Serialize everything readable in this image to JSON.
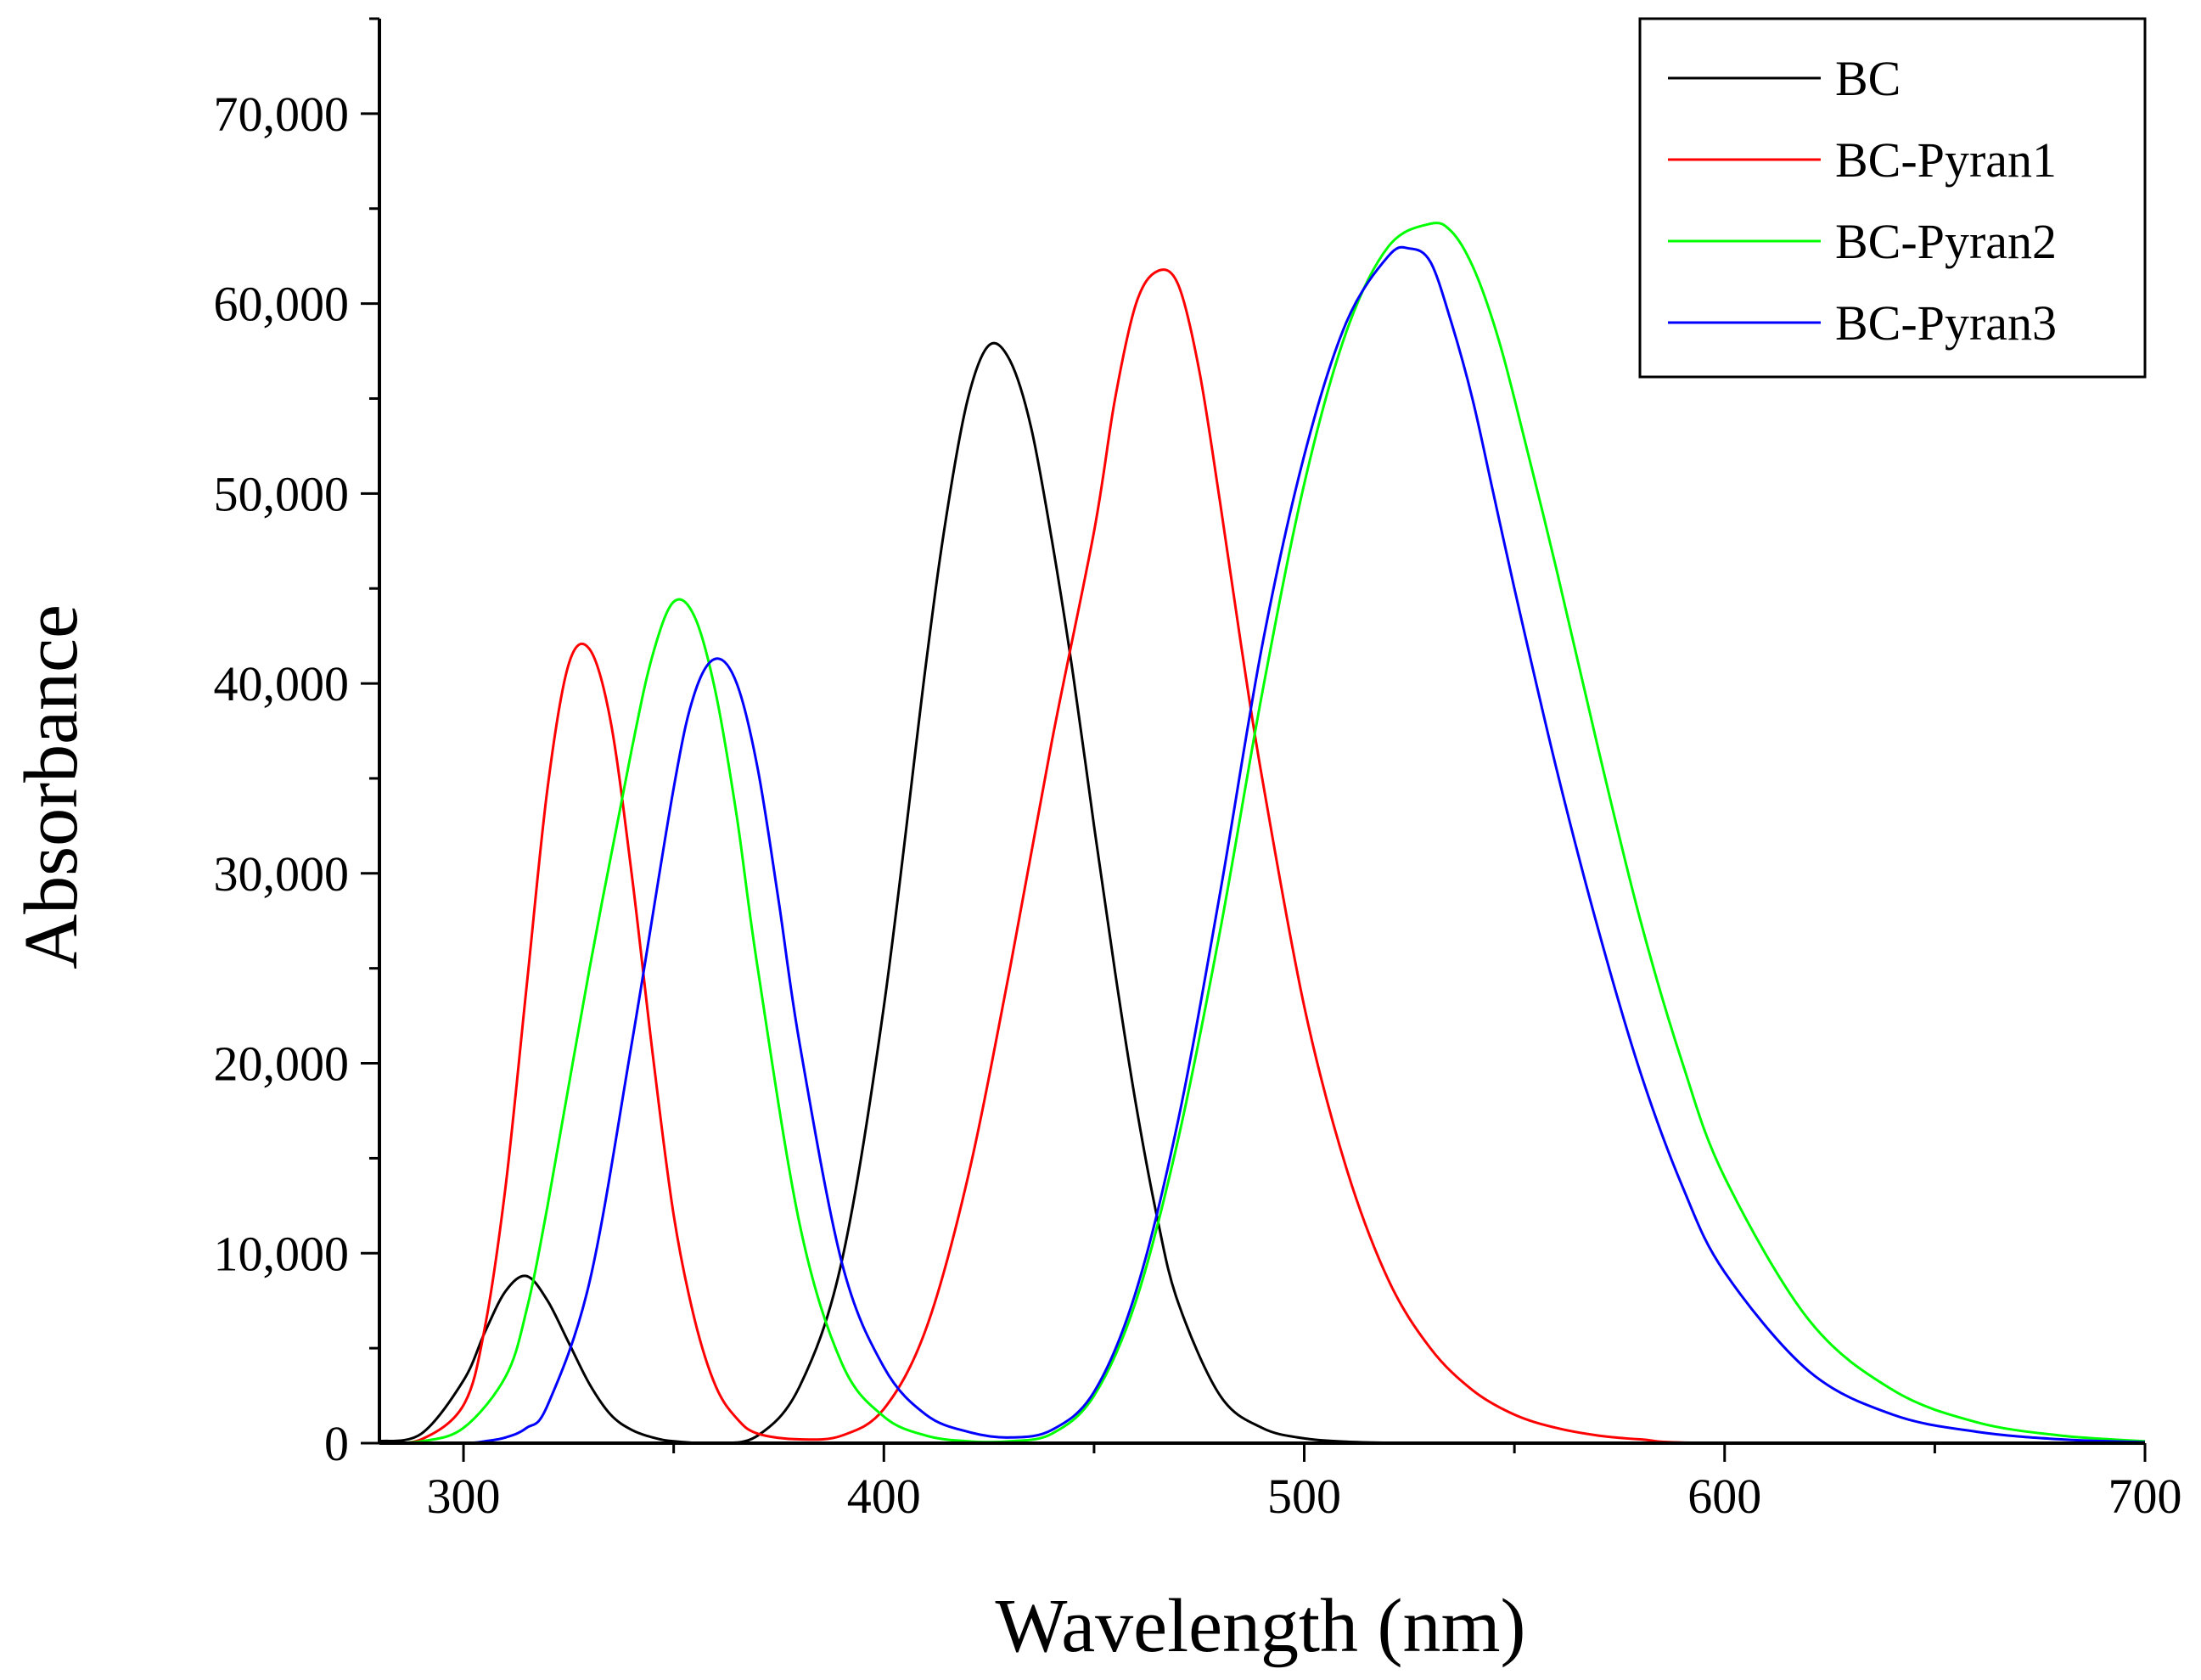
{
  "chart_data": {
    "type": "line",
    "title": "",
    "xlabel": "Wavelength (nm)",
    "ylabel": "Absorbance",
    "xlim": [
      280,
      700
    ],
    "ylim": [
      0,
      75000
    ],
    "xticks": [
      300,
      400,
      500,
      600,
      700
    ],
    "xtick_labels": [
      "300",
      "400",
      "500",
      "600",
      "700"
    ],
    "yticks": [
      0,
      10000,
      20000,
      30000,
      40000,
      50000,
      60000,
      70000
    ],
    "ytick_labels": [
      "0",
      "10,000",
      "20,000",
      "30,000",
      "40,000",
      "50,000",
      "60,000",
      "70,000"
    ],
    "grid": false,
    "legend_position": "top-right",
    "series": [
      {
        "name": "BC",
        "color": "#000000",
        "x": [
          280,
          290,
          300,
          305,
          310,
          315,
          320,
          325,
          330,
          335,
          340,
          345,
          350,
          360,
          370,
          380,
          390,
          400,
          410,
          415,
          420,
          425,
          430,
          435,
          440,
          445,
          450,
          455,
          460,
          465,
          470,
          480,
          490,
          500,
          510,
          520,
          530,
          540,
          560,
          600,
          700
        ],
        "y": [
          100,
          500,
          3300,
          5800,
          8000,
          8800,
          7500,
          5300,
          3100,
          1500,
          700,
          300,
          100,
          0,
          400,
          3000,
          9600,
          23000,
          41000,
          49000,
          55000,
          57800,
          57000,
          53500,
          47500,
          40500,
          32500,
          24800,
          17800,
          11900,
          7400,
          2500,
          800,
          250,
          80,
          20,
          0,
          0,
          0,
          0,
          0
        ]
      },
      {
        "name": "BC-Pyran1",
        "color": "#ff0000",
        "x": [
          280,
          290,
          300,
          305,
          310,
          315,
          320,
          325,
          330,
          335,
          340,
          345,
          350,
          355,
          360,
          365,
          370,
          380,
          390,
          400,
          410,
          420,
          430,
          440,
          450,
          455,
          460,
          465,
          470,
          475,
          480,
          485,
          490,
          500,
          510,
          520,
          530,
          540,
          550,
          560,
          570,
          580,
          600,
          700
        ],
        "y": [
          0,
          200,
          2000,
          6000,
          13500,
          24000,
          34500,
          41000,
          41800,
          38000,
          30000,
          20500,
          12000,
          6500,
          3000,
          1300,
          500,
          200,
          400,
          1800,
          6000,
          14000,
          25000,
          37000,
          48000,
          55000,
          60000,
          61700,
          61000,
          56500,
          49500,
          42000,
          35000,
          23000,
          14500,
          8600,
          5000,
          2800,
          1500,
          800,
          400,
          200,
          0,
          0
        ]
      },
      {
        "name": "BC-Pyran2",
        "color": "#00ff00",
        "x": [
          280,
          290,
          300,
          310,
          315,
          320,
          330,
          340,
          345,
          350,
          355,
          360,
          365,
          370,
          380,
          390,
          400,
          410,
          420,
          430,
          440,
          450,
          460,
          470,
          480,
          490,
          500,
          510,
          520,
          530,
          535,
          540,
          545,
          550,
          560,
          570,
          580,
          590,
          600,
          620,
          640,
          660,
          680,
          700
        ],
        "y": [
          0,
          100,
          800,
          3500,
          7000,
          12500,
          25000,
          36500,
          41500,
          44300,
          43500,
          39500,
          33000,
          25000,
          11500,
          4200,
          1400,
          400,
          100,
          100,
          500,
          2500,
          7500,
          16000,
          27000,
          39500,
          50500,
          58500,
          63000,
          64200,
          63800,
          62000,
          59000,
          55000,
          46000,
          36500,
          27500,
          20000,
          14000,
          6500,
          2800,
          1100,
          400,
          100
        ]
      },
      {
        "name": "BC-Pyran3",
        "color": "#0000ff",
        "x": [
          280,
          300,
          305,
          310,
          315,
          320,
          330,
          340,
          350,
          355,
          360,
          365,
          370,
          375,
          380,
          390,
          400,
          410,
          420,
          430,
          440,
          450,
          460,
          470,
          480,
          490,
          500,
          510,
          520,
          525,
          530,
          535,
          540,
          545,
          550,
          560,
          570,
          580,
          590,
          600,
          620,
          640,
          660,
          680,
          700
        ],
        "y": [
          0,
          0,
          100,
          300,
          800,
          2000,
          8500,
          21000,
          34500,
          39500,
          41300,
          40000,
          35500,
          28500,
          21000,
          9500,
          4000,
          1500,
          600,
          300,
          700,
          2700,
          8000,
          17000,
          29000,
          42000,
          52000,
          59000,
          62500,
          62900,
          62200,
          59000,
          55000,
          50000,
          45000,
          35500,
          27000,
          19500,
          13500,
          9000,
          3800,
          1500,
          600,
          200,
          50
        ]
      }
    ]
  }
}
